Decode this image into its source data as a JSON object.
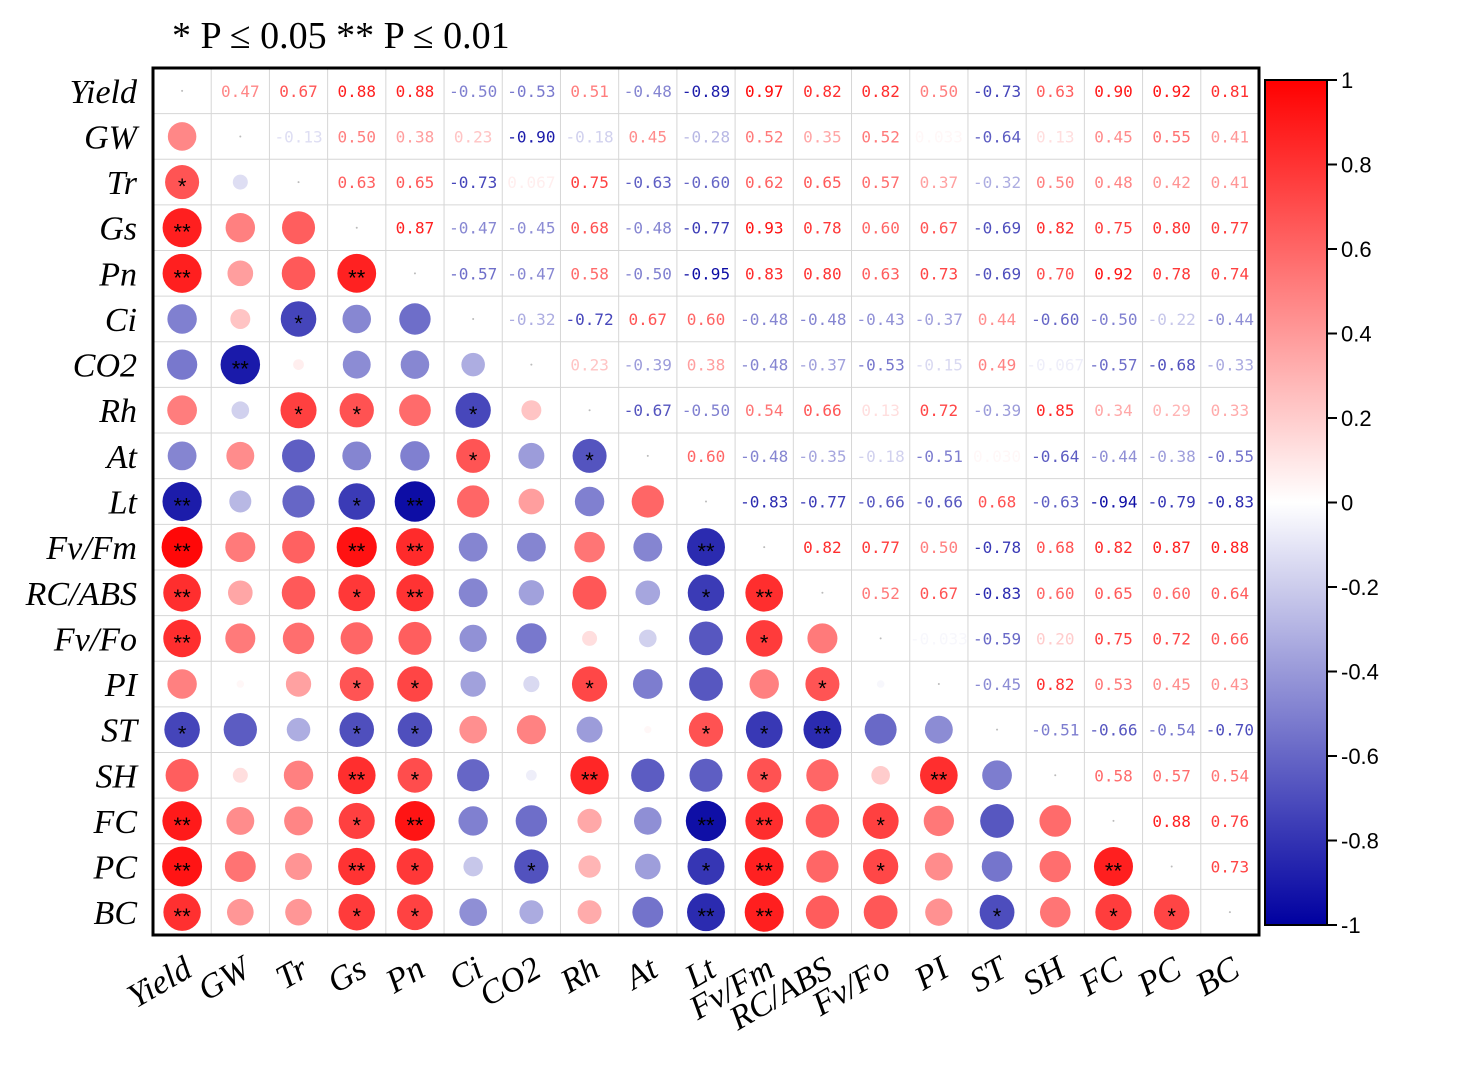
{
  "chart_data": {
    "type": "heatmap",
    "subtype": "correlation-matrix",
    "significance_legend": "* P ≤ 0.05   ** P ≤ 0.01",
    "variables": [
      "Yield",
      "GW",
      "Tr",
      "Gs",
      "Pn",
      "Ci",
      "CO2",
      "Rh",
      "At",
      "Lt",
      "Fv/Fm",
      "RC/ABS",
      "Fv/Fo",
      "PI",
      "ST",
      "SH",
      "FC",
      "PC",
      "BC"
    ],
    "upper_triangle_text": [
      [
        "",
        "0.47",
        "0.67",
        "0.88",
        "0.88",
        "-0.50",
        "-0.53",
        "0.51",
        "-0.48",
        "-0.89",
        "0.97",
        "0.82",
        "0.82",
        "0.50",
        "-0.73",
        "0.63",
        "0.90",
        "0.92",
        "0.81"
      ],
      [
        "",
        "",
        "-0.13",
        "0.50",
        "0.38",
        "0.23",
        "-0.90",
        "-0.18",
        "0.45",
        "-0.28",
        "0.52",
        "0.35",
        "0.52",
        "0.033",
        "-0.64",
        "0.13",
        "0.45",
        "0.55",
        "0.41"
      ],
      [
        "",
        "",
        "",
        "0.63",
        "0.65",
        "-0.73",
        "0.067",
        "0.75",
        "-0.63",
        "-0.60",
        "0.62",
        "0.65",
        "0.57",
        "0.37",
        "-0.32",
        "0.50",
        "0.48",
        "0.42",
        "0.41"
      ],
      [
        "",
        "",
        "",
        "",
        "0.87",
        "-0.47",
        "-0.45",
        "0.68",
        "-0.48",
        "-0.77",
        "0.93",
        "0.78",
        "0.60",
        "0.67",
        "-0.69",
        "0.82",
        "0.75",
        "0.80",
        "0.77"
      ],
      [
        "",
        "",
        "",
        "",
        "",
        "-0.57",
        "-0.47",
        "0.58",
        "-0.50",
        "-0.95",
        "0.83",
        "0.80",
        "0.63",
        "0.73",
        "-0.69",
        "0.70",
        "0.92",
        "0.78",
        "0.74"
      ],
      [
        "",
        "",
        "",
        "",
        "",
        "",
        "-0.32",
        "-0.72",
        "0.67",
        "0.60",
        "-0.48",
        "-0.48",
        "-0.43",
        "-0.37",
        "0.44",
        "-0.60",
        "-0.50",
        "-0.22",
        "-0.44"
      ],
      [
        "",
        "",
        "",
        "",
        "",
        "",
        "",
        "0.23",
        "-0.39",
        "0.38",
        "-0.48",
        "-0.37",
        "-0.53",
        "-0.15",
        "0.49",
        "-0.067",
        "-0.57",
        "-0.68",
        "-0.33"
      ],
      [
        "",
        "",
        "",
        "",
        "",
        "",
        "",
        "",
        "-0.67",
        "-0.50",
        "0.54",
        "0.66",
        "0.13",
        "0.72",
        "-0.39",
        "0.85",
        "0.34",
        "0.29",
        "0.33"
      ],
      [
        "",
        "",
        "",
        "",
        "",
        "",
        "",
        "",
        "",
        "0.60",
        "-0.48",
        "-0.35",
        "-0.18",
        "-0.51",
        "0.030",
        "-0.64",
        "-0.44",
        "-0.38",
        "-0.55"
      ],
      [
        "",
        "",
        "",
        "",
        "",
        "",
        "",
        "",
        "",
        "",
        "-0.83",
        "-0.77",
        "-0.66",
        "-0.66",
        "0.68",
        "-0.63",
        "-0.94",
        "-0.79",
        "-0.83"
      ],
      [
        "",
        "",
        "",
        "",
        "",
        "",
        "",
        "",
        "",
        "",
        "",
        "0.82",
        "0.77",
        "0.50",
        "-0.78",
        "0.68",
        "0.82",
        "0.87",
        "0.88"
      ],
      [
        "",
        "",
        "",
        "",
        "",
        "",
        "",
        "",
        "",
        "",
        "",
        "",
        "0.52",
        "0.67",
        "-0.83",
        "0.60",
        "0.65",
        "0.60",
        "0.64"
      ],
      [
        "",
        "",
        "",
        "",
        "",
        "",
        "",
        "",
        "",
        "",
        "",
        "",
        "",
        "-0.033",
        "-0.59",
        "0.20",
        "0.75",
        "0.72",
        "0.66"
      ],
      [
        "",
        "",
        "",
        "",
        "",
        "",
        "",
        "",
        "",
        "",
        "",
        "",
        "",
        "",
        "-0.45",
        "0.82",
        "0.53",
        "0.45",
        "0.43"
      ],
      [
        "",
        "",
        "",
        "",
        "",
        "",
        "",
        "",
        "",
        "",
        "",
        "",
        "",
        "",
        "",
        "-0.51",
        "-0.66",
        "-0.54",
        "-0.70"
      ],
      [
        "",
        "",
        "",
        "",
        "",
        "",
        "",
        "",
        "",
        "",
        "",
        "",
        "",
        "",
        "",
        "",
        "0.58",
        "0.57",
        "0.54"
      ],
      [
        "",
        "",
        "",
        "",
        "",
        "",
        "",
        "",
        "",
        "",
        "",
        "",
        "",
        "",
        "",
        "",
        "",
        "0.88",
        "0.76"
      ],
      [
        "",
        "",
        "",
        "",
        "",
        "",
        "",
        "",
        "",
        "",
        "",
        "",
        "",
        "",
        "",
        "",
        "",
        "",
        "0.73"
      ],
      [
        "",
        "",
        "",
        "",
        "",
        "",
        "",
        "",
        "",
        "",
        "",
        "",
        "",
        "",
        "",
        "",
        "",
        "",
        ""
      ]
    ],
    "significance_lower_triangle": [
      [
        "",
        "",
        "",
        "",
        "",
        "",
        "",
        "",
        "",
        "",
        "",
        "",
        "",
        "",
        "",
        "",
        "",
        "",
        ""
      ],
      [
        "",
        "",
        "",
        "",
        "",
        "",
        "",
        "",
        "",
        "",
        "",
        "",
        "",
        "",
        "",
        "",
        "",
        "",
        ""
      ],
      [
        "*",
        "",
        "",
        "",
        "",
        "",
        "",
        "",
        "",
        "",
        "",
        "",
        "",
        "",
        "",
        "",
        "",
        "",
        ""
      ],
      [
        "**",
        "",
        "",
        "",
        "",
        "",
        "",
        "",
        "",
        "",
        "",
        "",
        "",
        "",
        "",
        "",
        "",
        "",
        ""
      ],
      [
        "**",
        "",
        "",
        "**",
        "",
        "",
        "",
        "",
        "",
        "",
        "",
        "",
        "",
        "",
        "",
        "",
        "",
        "",
        ""
      ],
      [
        "",
        "",
        "*",
        "",
        "",
        "",
        "",
        "",
        "",
        "",
        "",
        "",
        "",
        "",
        "",
        "",
        "",
        "",
        ""
      ],
      [
        "",
        "**",
        "",
        "",
        "",
        "",
        "",
        "",
        "",
        "",
        "",
        "",
        "",
        "",
        "",
        "",
        "",
        "",
        ""
      ],
      [
        "",
        "",
        "*",
        "*",
        "",
        "*",
        "",
        "",
        "",
        "",
        "",
        "",
        "",
        "",
        "",
        "",
        "",
        "",
        ""
      ],
      [
        "",
        "",
        "",
        "",
        "",
        "*",
        "",
        "*",
        "",
        "",
        "",
        "",
        "",
        "",
        "",
        "",
        "",
        "",
        ""
      ],
      [
        "**",
        "",
        "",
        "*",
        "**",
        "",
        "",
        "",
        "",
        "",
        "",
        "",
        "",
        "",
        "",
        "",
        "",
        "",
        ""
      ],
      [
        "**",
        "",
        "",
        "**",
        "**",
        "",
        "",
        "",
        "",
        "**",
        "",
        "",
        "",
        "",
        "",
        "",
        "",
        "",
        ""
      ],
      [
        "**",
        "",
        "",
        "*",
        "**",
        "",
        "",
        "",
        "",
        "*",
        "**",
        "",
        "",
        "",
        "",
        "",
        "",
        "",
        ""
      ],
      [
        "**",
        "",
        "",
        "",
        "",
        "",
        "",
        "",
        "",
        "",
        "*",
        "",
        "",
        "",
        "",
        "",
        "",
        "",
        ""
      ],
      [
        "",
        "",
        "",
        "*",
        "*",
        "",
        "",
        "*",
        "",
        "",
        "",
        "*",
        "",
        "",
        "",
        "",
        "",
        "",
        ""
      ],
      [
        "*",
        "",
        "",
        "*",
        "*",
        "",
        "",
        "",
        "",
        "*",
        "*",
        "**",
        "",
        "",
        "",
        "",
        "",
        "",
        ""
      ],
      [
        "",
        "",
        "",
        "**",
        "*",
        "",
        "",
        "**",
        "",
        "",
        "*",
        "",
        "",
        "**",
        "",
        "",
        "",
        "",
        ""
      ],
      [
        "**",
        "",
        "",
        "*",
        "**",
        "",
        "",
        "",
        "",
        "**",
        "**",
        "",
        "*",
        "",
        "",
        "",
        "",
        "",
        ""
      ],
      [
        "**",
        "",
        "",
        "**",
        "*",
        "",
        "*",
        "",
        "",
        "*",
        "**",
        "",
        "*",
        "",
        "",
        "",
        "**",
        "",
        ""
      ],
      [
        "**",
        "",
        "",
        "*",
        "*",
        "",
        "",
        "",
        "",
        "**",
        "**",
        "",
        "",
        "",
        "*",
        "",
        "*",
        "*",
        ""
      ]
    ],
    "colorbar": {
      "min": -1,
      "max": 1,
      "tick_labels": [
        "1",
        "0.8",
        "0.6",
        "0.4",
        "0.2",
        "0",
        "-0.2",
        "-0.4",
        "-0.6",
        "-0.8",
        "-1"
      ],
      "colors": {
        "negative": "#0000a0",
        "zero": "#ffffff",
        "positive": "#ff0000"
      }
    }
  }
}
